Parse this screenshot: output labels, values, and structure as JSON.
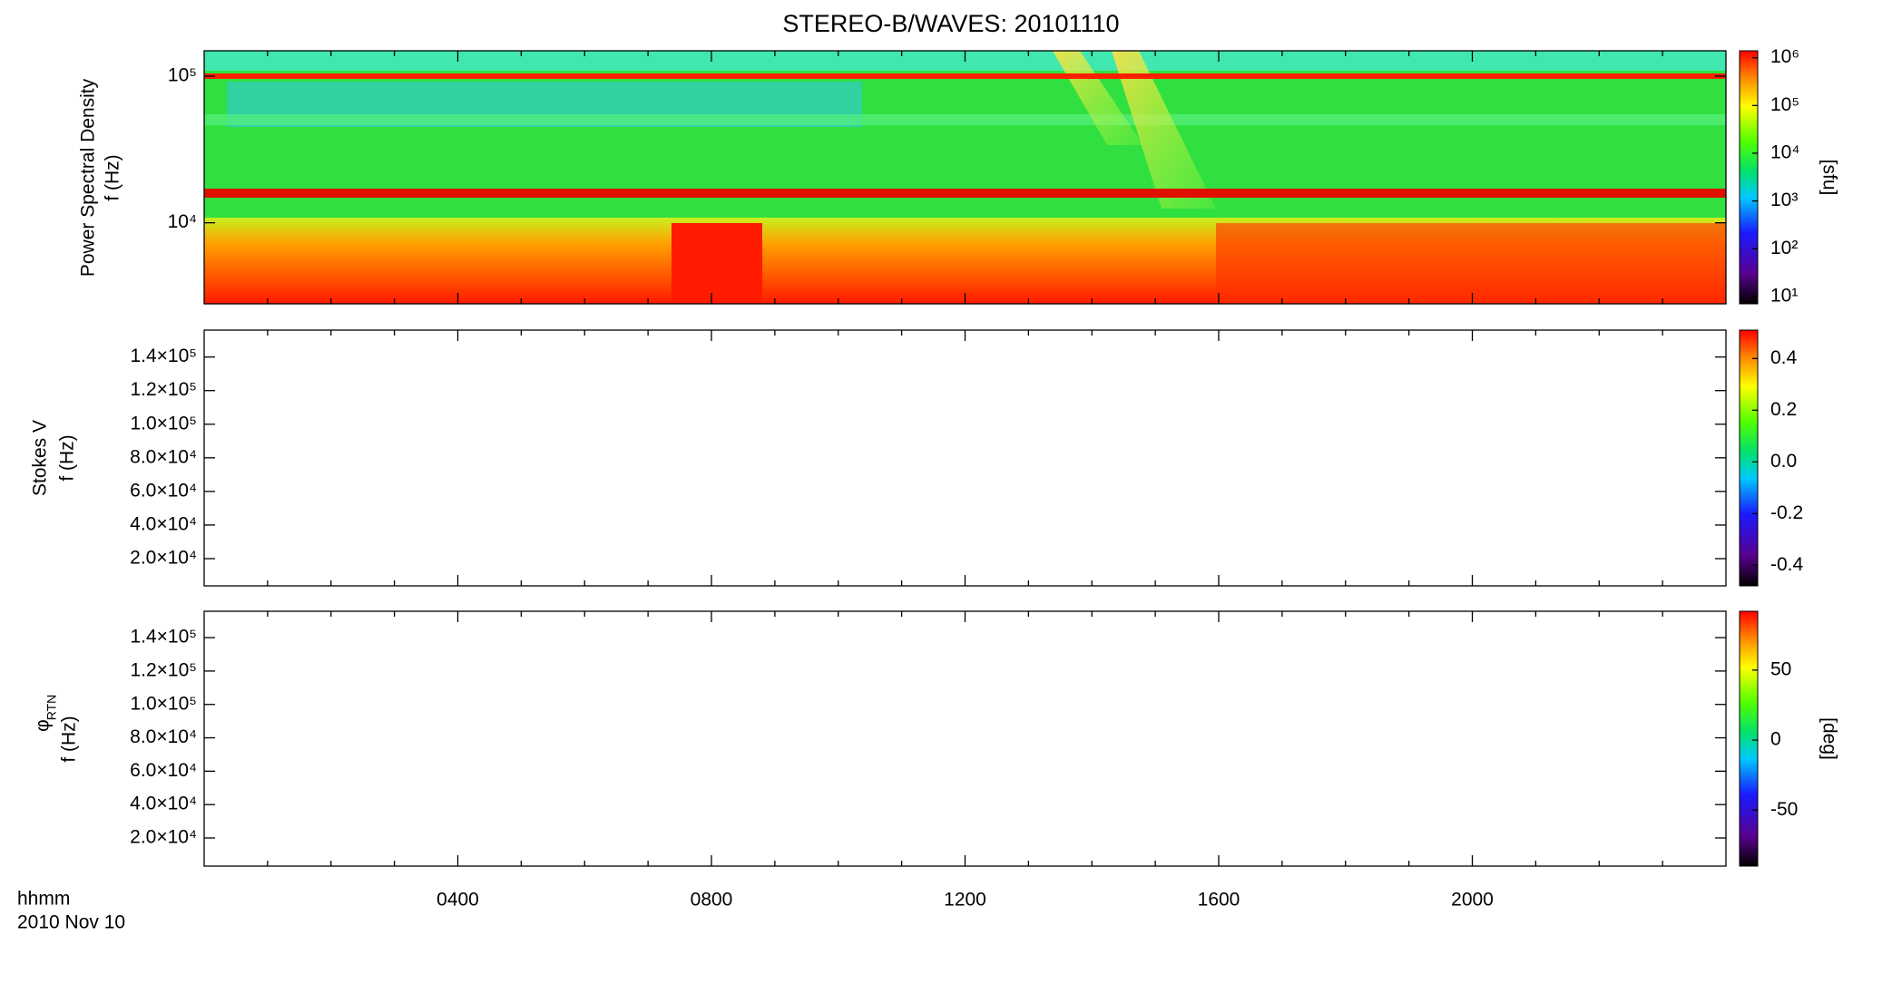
{
  "chart_data": [
    {
      "type": "spectrogram",
      "title": "STEREO-B/WAVES: 20101110",
      "ylabel": [
        "Power Spectral Density",
        "f (Hz)"
      ],
      "ylog": true,
      "ylim": [
        2800,
        149000
      ],
      "yticks": [
        {
          "value": 10000,
          "label": "10⁴"
        },
        {
          "value": 100000,
          "label": "10⁵"
        }
      ],
      "clog": true,
      "clim": [
        7,
        1400000
      ],
      "cticks": [
        {
          "value": 10,
          "label": "10¹"
        },
        {
          "value": 100,
          "label": "10²"
        },
        {
          "value": 1000,
          "label": "10³"
        },
        {
          "value": 10000,
          "label": "10⁴"
        },
        {
          "value": 100000,
          "label": "10⁵"
        },
        {
          "value": 1000000,
          "label": "10⁶"
        }
      ],
      "clabel": "[sfu]"
    },
    {
      "type": "spectrogram",
      "ylabel": [
        "Stokes V",
        "f (Hz)"
      ],
      "ylog": false,
      "ylim": [
        3800,
        156000
      ],
      "yticks": [
        {
          "value": 20000,
          "label": "2.0×10⁴"
        },
        {
          "value": 40000,
          "label": "4.0×10⁴"
        },
        {
          "value": 60000,
          "label": "6.0×10⁴"
        },
        {
          "value": 80000,
          "label": "8.0×10⁴"
        },
        {
          "value": 100000,
          "label": "1.0×10⁵"
        },
        {
          "value": 120000,
          "label": "1.2×10⁵"
        },
        {
          "value": 140000,
          "label": "1.4×10⁵"
        }
      ],
      "clog": false,
      "clim": [
        -0.48,
        0.51
      ],
      "cticks": [
        -0.4,
        -0.2,
        {
          "value": 0,
          "label": "0.0"
        },
        0.2,
        0.4
      ]
    },
    {
      "type": "spectrogram",
      "ylabel_symbol": "φ",
      "ylabel_subscript": "RTN",
      "ylabel": [
        "f (Hz)"
      ],
      "ylog": false,
      "ylim": [
        3150,
        155800
      ],
      "yticks": [
        {
          "value": 20000,
          "label": "2.0×10⁴"
        },
        {
          "value": 40000,
          "label": "4.0×10⁴"
        },
        {
          "value": 60000,
          "label": "6.0×10⁴"
        },
        {
          "value": 80000,
          "label": "8.0×10⁴"
        },
        {
          "value": 100000,
          "label": "1.0×10⁵"
        },
        {
          "value": 120000,
          "label": "1.2×10⁵"
        },
        {
          "value": 140000,
          "label": "1.4×10⁵"
        }
      ],
      "clog": false,
      "clim": [
        -90,
        92
      ],
      "cticks": [
        -50,
        0,
        50
      ],
      "clabel": "[deg]",
      "xlim": [
        0,
        24
      ],
      "xticks": [
        {
          "value": 4,
          "label": "0400"
        },
        {
          "value": 8,
          "label": "0800"
        },
        {
          "value": 12,
          "label": "1200"
        },
        {
          "value": 16,
          "label": "1600"
        },
        {
          "value": 20,
          "label": "2000"
        }
      ],
      "xminorticks": [
        1,
        2,
        3,
        5,
        6,
        7,
        9,
        10,
        11,
        13,
        14,
        15,
        17,
        18,
        19,
        21,
        22,
        23
      ],
      "xlabel": [
        "hhmm",
        "2010 Nov 10"
      ]
    }
  ]
}
